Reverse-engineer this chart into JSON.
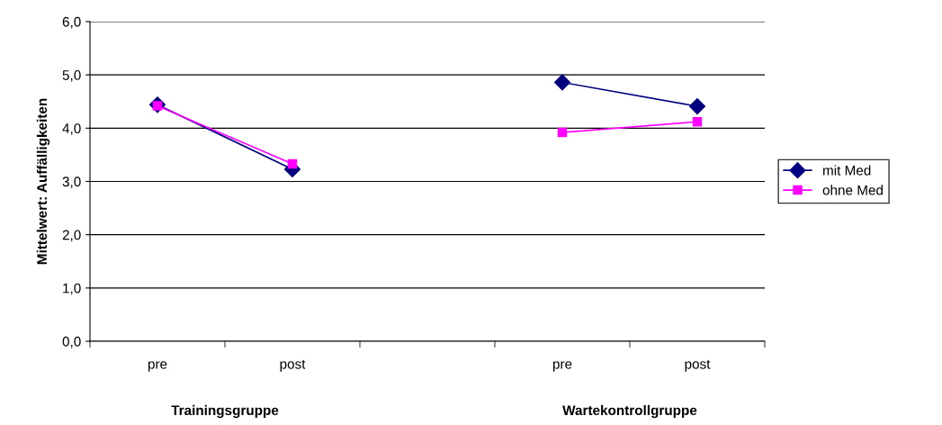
{
  "chart_data": {
    "type": "line",
    "ylabel": "Mittelwert: Auffälligkeiten",
    "categories": [
      "pre",
      "post",
      null,
      "pre",
      "post"
    ],
    "series": [
      {
        "name": "mit Med",
        "color": "#000080",
        "marker": "diamond",
        "values": [
          4.44,
          3.23,
          null,
          4.86,
          4.41
        ]
      },
      {
        "name": "ohne Med",
        "color": "#ff00ff",
        "marker": "square",
        "values": [
          4.42,
          3.33,
          null,
          3.92,
          4.12
        ]
      }
    ],
    "ylim": [
      0,
      6
    ],
    "yticks": [
      {
        "value": 0,
        "label": "0,0"
      },
      {
        "value": 1,
        "label": "1,0"
      },
      {
        "value": 2,
        "label": "2,0"
      },
      {
        "value": 3,
        "label": "3,0"
      },
      {
        "value": 4,
        "label": "4,0"
      },
      {
        "value": 5,
        "label": "5,0"
      },
      {
        "value": 6,
        "label": "6,0"
      }
    ],
    "grid": "y",
    "legend": "right",
    "annotations": [
      "Trainingsgruppe",
      "Wartekontrollgruppe"
    ]
  }
}
